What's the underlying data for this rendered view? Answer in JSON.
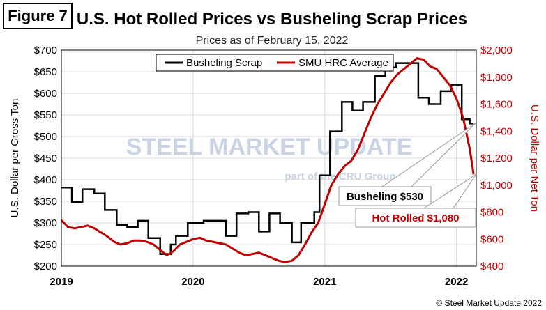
{
  "figure_label": "Figure 7",
  "chart_data": {
    "type": "line",
    "title": "U.S. Hot Rolled Prices vs Busheling Scrap Prices",
    "subtitle": "Prices as of February 15, 2022",
    "ylabel_left": "U.S. Dollar per Gross Ton",
    "ylabel_right": "U.S. Dollar per Net Ton",
    "ylim_left": [
      200,
      700
    ],
    "ylim_right": [
      400,
      2000
    ],
    "yticks_left": [
      "$200",
      "$250",
      "$300",
      "$350",
      "$400",
      "$450",
      "$500",
      "$550",
      "$600",
      "$650",
      "$700"
    ],
    "yticks_right": [
      "$400",
      "$600",
      "$800",
      "$1,000",
      "$1,200",
      "$1,400",
      "$1,600",
      "$1,800",
      "$2,000"
    ],
    "xlim": [
      2019.0,
      2022.15
    ],
    "xticks": [
      "2019",
      "2020",
      "2021",
      "2022"
    ],
    "grid": true,
    "legend_position": "top-center",
    "colors": {
      "scrap": "#000000",
      "hrc": "#c00000"
    },
    "series": [
      {
        "name": "Busheling Scrap",
        "axis": "left",
        "points": [
          [
            2019.0,
            382
          ],
          [
            2019.08,
            382
          ],
          [
            2019.08,
            348
          ],
          [
            2019.16,
            348
          ],
          [
            2019.16,
            378
          ],
          [
            2019.25,
            378
          ],
          [
            2019.25,
            368
          ],
          [
            2019.33,
            368
          ],
          [
            2019.33,
            330
          ],
          [
            2019.42,
            330
          ],
          [
            2019.42,
            295
          ],
          [
            2019.5,
            295
          ],
          [
            2019.5,
            290
          ],
          [
            2019.58,
            290
          ],
          [
            2019.58,
            305
          ],
          [
            2019.66,
            305
          ],
          [
            2019.66,
            265
          ],
          [
            2019.75,
            265
          ],
          [
            2019.75,
            228
          ],
          [
            2019.83,
            228
          ],
          [
            2019.83,
            250
          ],
          [
            2019.87,
            250
          ],
          [
            2019.87,
            270
          ],
          [
            2019.96,
            270
          ],
          [
            2019.96,
            300
          ],
          [
            2020.08,
            300
          ],
          [
            2020.08,
            305
          ],
          [
            2020.25,
            305
          ],
          [
            2020.25,
            270
          ],
          [
            2020.33,
            270
          ],
          [
            2020.33,
            322
          ],
          [
            2020.42,
            322
          ],
          [
            2020.42,
            325
          ],
          [
            2020.5,
            325
          ],
          [
            2020.5,
            280
          ],
          [
            2020.58,
            280
          ],
          [
            2020.58,
            322
          ],
          [
            2020.66,
            322
          ],
          [
            2020.66,
            300
          ],
          [
            2020.75,
            300
          ],
          [
            2020.75,
            255
          ],
          [
            2020.82,
            255
          ],
          [
            2020.82,
            300
          ],
          [
            2020.92,
            300
          ],
          [
            2020.92,
            325
          ],
          [
            2020.96,
            325
          ],
          [
            2020.96,
            410
          ],
          [
            2021.04,
            410
          ],
          [
            2021.04,
            512
          ],
          [
            2021.13,
            512
          ],
          [
            2021.13,
            580
          ],
          [
            2021.21,
            580
          ],
          [
            2021.21,
            560
          ],
          [
            2021.29,
            560
          ],
          [
            2021.29,
            580
          ],
          [
            2021.38,
            580
          ],
          [
            2021.38,
            640
          ],
          [
            2021.46,
            640
          ],
          [
            2021.46,
            660
          ],
          [
            2021.54,
            660
          ],
          [
            2021.54,
            670
          ],
          [
            2021.71,
            670
          ],
          [
            2021.71,
            590
          ],
          [
            2021.79,
            590
          ],
          [
            2021.79,
            575
          ],
          [
            2021.88,
            575
          ],
          [
            2021.88,
            605
          ],
          [
            2021.96,
            605
          ],
          [
            2021.96,
            620
          ],
          [
            2022.04,
            620
          ],
          [
            2022.04,
            540
          ],
          [
            2022.1,
            540
          ],
          [
            2022.1,
            530
          ],
          [
            2022.13,
            530
          ]
        ]
      },
      {
        "name": "SMU HRC Average",
        "axis": "right",
        "points": [
          [
            2019.0,
            740
          ],
          [
            2019.05,
            690
          ],
          [
            2019.1,
            680
          ],
          [
            2019.15,
            690
          ],
          [
            2019.2,
            700
          ],
          [
            2019.25,
            680
          ],
          [
            2019.3,
            650
          ],
          [
            2019.35,
            620
          ],
          [
            2019.4,
            580
          ],
          [
            2019.45,
            560
          ],
          [
            2019.5,
            570
          ],
          [
            2019.55,
            590
          ],
          [
            2019.6,
            590
          ],
          [
            2019.65,
            580
          ],
          [
            2019.7,
            560
          ],
          [
            2019.75,
            520
          ],
          [
            2019.8,
            480
          ],
          [
            2019.85,
            510
          ],
          [
            2019.9,
            560
          ],
          [
            2019.95,
            580
          ],
          [
            2020.0,
            600
          ],
          [
            2020.05,
            610
          ],
          [
            2020.1,
            590
          ],
          [
            2020.15,
            580
          ],
          [
            2020.2,
            570
          ],
          [
            2020.25,
            560
          ],
          [
            2020.3,
            530
          ],
          [
            2020.35,
            500
          ],
          [
            2020.4,
            480
          ],
          [
            2020.45,
            490
          ],
          [
            2020.5,
            500
          ],
          [
            2020.55,
            480
          ],
          [
            2020.6,
            460
          ],
          [
            2020.65,
            440
          ],
          [
            2020.7,
            430
          ],
          [
            2020.75,
            440
          ],
          [
            2020.8,
            480
          ],
          [
            2020.85,
            560
          ],
          [
            2020.9,
            650
          ],
          [
            2020.95,
            720
          ],
          [
            2021.0,
            860
          ],
          [
            2021.05,
            1000
          ],
          [
            2021.1,
            1080
          ],
          [
            2021.15,
            1140
          ],
          [
            2021.2,
            1180
          ],
          [
            2021.25,
            1260
          ],
          [
            2021.3,
            1380
          ],
          [
            2021.35,
            1500
          ],
          [
            2021.4,
            1600
          ],
          [
            2021.45,
            1680
          ],
          [
            2021.5,
            1760
          ],
          [
            2021.55,
            1820
          ],
          [
            2021.6,
            1860
          ],
          [
            2021.65,
            1900
          ],
          [
            2021.7,
            1940
          ],
          [
            2021.75,
            1930
          ],
          [
            2021.8,
            1880
          ],
          [
            2021.85,
            1860
          ],
          [
            2021.9,
            1800
          ],
          [
            2021.95,
            1740
          ],
          [
            2022.0,
            1640
          ],
          [
            2022.05,
            1500
          ],
          [
            2022.1,
            1270
          ],
          [
            2022.13,
            1080
          ]
        ]
      }
    ],
    "annotations": [
      {
        "text": "Busheling $530",
        "color": "#000000"
      },
      {
        "text": "Hot Rolled $1,080",
        "color": "#c00000"
      }
    ],
    "watermark": {
      "line1": "STEEL MARKET UPDATE",
      "line2": "part of the CRU Group"
    }
  },
  "copyright": "© Steel Market Update 2022"
}
